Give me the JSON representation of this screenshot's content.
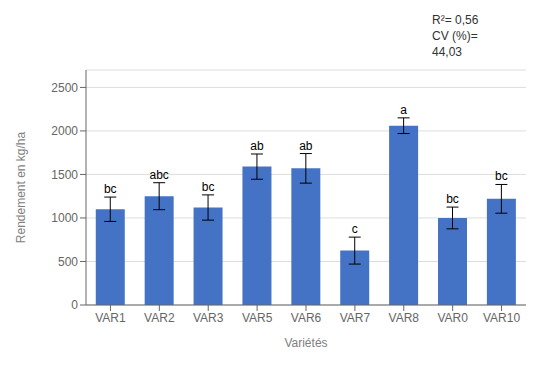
{
  "chart_data": {
    "type": "bar",
    "categories": [
      "VAR1",
      "VAR2",
      "VAR3",
      "VAR5",
      "VAR6",
      "VAR7",
      "VAR8",
      "VAR0",
      "VAR10"
    ],
    "values": [
      1100,
      1250,
      1120,
      1590,
      1570,
      625,
      2060,
      1000,
      1220
    ],
    "errors": [
      140,
      155,
      145,
      145,
      170,
      155,
      90,
      125,
      165
    ],
    "bar_labels": [
      "bc",
      "abc",
      "bc",
      "ab",
      "ab",
      "c",
      "a",
      "bc",
      "bc"
    ],
    "color": "#4472C4",
    "ylabel": "Rendement en kg/ha",
    "xlabel": "Variétés",
    "ylim": [
      0,
      2700
    ],
    "yticks": [
      0,
      500,
      1000,
      1500,
      2000,
      2500
    ],
    "grid": true,
    "annotations": [
      "R²= 0,56",
      "CV (%)=",
      "44,03"
    ]
  }
}
